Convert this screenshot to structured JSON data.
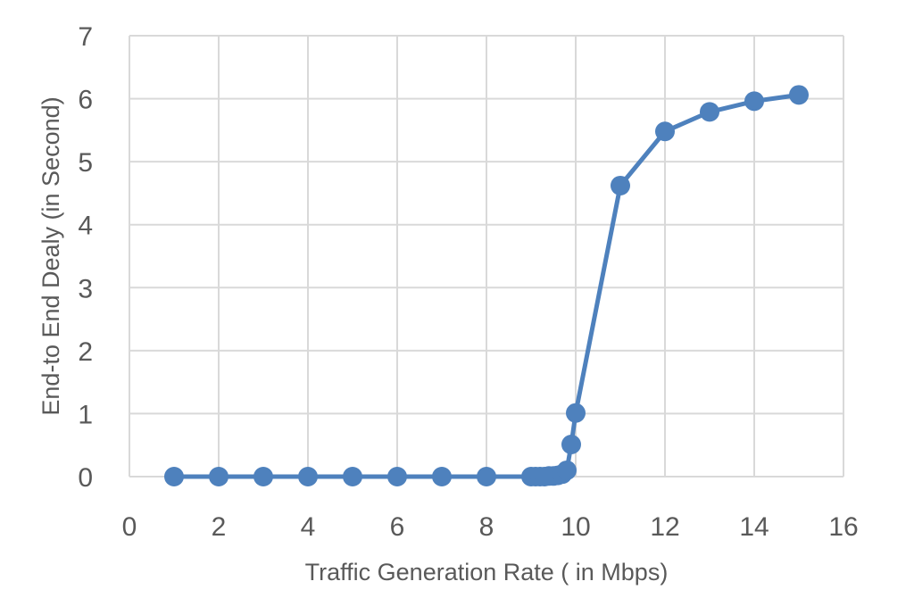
{
  "chart_data": {
    "type": "line",
    "title": "",
    "xlabel": "Traffic Generation Rate ( in Mbps)",
    "ylabel": "End-to End Dealy (in Second)",
    "xlim": [
      0,
      16
    ],
    "ylim": [
      0,
      7
    ],
    "xticks": [
      "0",
      "2",
      "4",
      "6",
      "8",
      "10",
      "12",
      "14",
      "16"
    ],
    "yticks": [
      "0",
      "1",
      "2",
      "3",
      "4",
      "5",
      "6",
      "7"
    ],
    "grid": true,
    "legend": "none",
    "series": [
      {
        "color": "#4e81bd",
        "marker": "circle",
        "points": [
          {
            "x": 1,
            "y": 0
          },
          {
            "x": 2,
            "y": 0
          },
          {
            "x": 3,
            "y": 0
          },
          {
            "x": 4,
            "y": 0
          },
          {
            "x": 5,
            "y": 0
          },
          {
            "x": 6,
            "y": 0
          },
          {
            "x": 7,
            "y": 0
          },
          {
            "x": 8,
            "y": 0
          },
          {
            "x": 9,
            "y": 0
          },
          {
            "x": 9.1,
            "y": 0
          },
          {
            "x": 9.2,
            "y": 0
          },
          {
            "x": 9.3,
            "y": 0
          },
          {
            "x": 9.4,
            "y": 0.01
          },
          {
            "x": 9.5,
            "y": 0.01
          },
          {
            "x": 9.6,
            "y": 0.02
          },
          {
            "x": 9.7,
            "y": 0.04
          },
          {
            "x": 9.8,
            "y": 0.1
          },
          {
            "x": 9.9,
            "y": 0.51
          },
          {
            "x": 10,
            "y": 1.01
          },
          {
            "x": 11,
            "y": 4.62
          },
          {
            "x": 12,
            "y": 5.48
          },
          {
            "x": 13,
            "y": 5.79
          },
          {
            "x": 14,
            "y": 5.96
          },
          {
            "x": 15,
            "y": 6.06
          }
        ]
      }
    ]
  }
}
